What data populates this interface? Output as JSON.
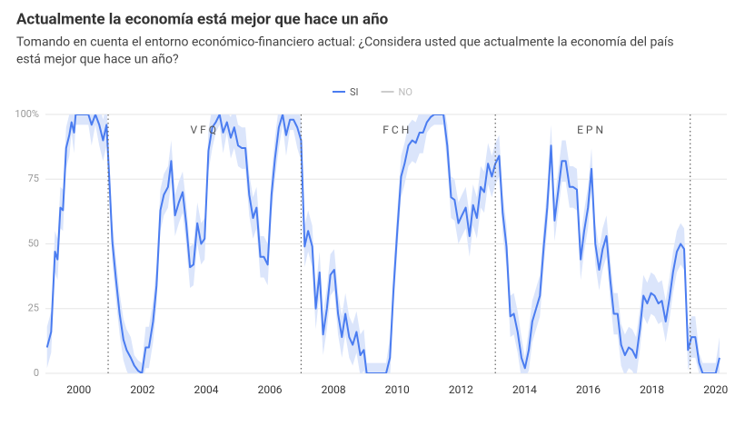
{
  "chart_data": {
    "type": "line",
    "title": "Actualmente la economía está mejor que hace un año",
    "subtitle": [
      "Tomando en cuenta el entorno económico-financiero actual: ¿Considera usted que actualmente la economía del país",
      "está mejor que hace un año?"
    ],
    "xlim": [
      1998.95,
      2020.35
    ],
    "xticks": [
      2000,
      2002,
      2004,
      2006,
      2008,
      2010,
      2012,
      2014,
      2016,
      2018,
      2020
    ],
    "ylim": [
      0,
      100
    ],
    "yticks": [
      0,
      25,
      50,
      {
        "value": 75,
        "label": "75"
      },
      {
        "value": 100,
        "label": "100%"
      }
    ],
    "grid": true,
    "legend": "top",
    "dividers": [
      2000.92,
      2006.98,
      2013.08,
      2019.2
    ],
    "periods": [
      {
        "label": "VFQ",
        "x": 2003.95
      },
      {
        "label": "FCH",
        "x": 2010.0
      },
      {
        "label": "EPN",
        "x": 2016.1
      }
    ],
    "x": [
      1999.0,
      1999.13,
      1999.25,
      1999.33,
      1999.42,
      1999.5,
      1999.6,
      1999.7,
      1999.77,
      1999.85,
      1999.9,
      2000.15,
      2000.3,
      2000.4,
      2000.52,
      2000.64,
      2000.76,
      2000.87,
      2000.96,
      2001.05,
      2001.16,
      2001.28,
      2001.4,
      2001.5,
      2001.63,
      2001.74,
      2001.86,
      2001.98,
      2002.1,
      2002.2,
      2002.33,
      2002.44,
      2002.56,
      2002.67,
      2002.8,
      2002.9,
      2003.02,
      2003.14,
      2003.26,
      2003.37,
      2003.49,
      2003.6,
      2003.72,
      2003.84,
      2003.95,
      2004.07,
      2004.19,
      2004.3,
      2004.42,
      2004.53,
      2004.65,
      2004.77,
      2004.88,
      2005.0,
      2005.12,
      2005.23,
      2005.35,
      2005.47,
      2005.58,
      2005.7,
      2005.81,
      2005.93,
      2006.05,
      2006.16,
      2006.28,
      2006.4,
      2006.51,
      2006.63,
      2006.74,
      2006.86,
      2006.98,
      2007.09,
      2007.2,
      2007.33,
      2007.44,
      2007.56,
      2007.67,
      2007.79,
      2007.9,
      2008.02,
      2008.14,
      2008.26,
      2008.37,
      2008.49,
      2008.6,
      2008.72,
      2008.84,
      2008.95,
      2009.04,
      2009.65,
      2009.77,
      2009.88,
      2010.0,
      2010.12,
      2010.23,
      2010.35,
      2010.47,
      2010.58,
      2010.7,
      2010.81,
      2010.93,
      2011.05,
      2011.16,
      2011.45,
      2011.57,
      2011.69,
      2011.8,
      2011.92,
      2012.03,
      2012.15,
      2012.27,
      2012.38,
      2012.5,
      2012.62,
      2012.73,
      2012.85,
      2012.97,
      2013.08,
      2013.2,
      2013.31,
      2013.43,
      2013.55,
      2013.66,
      2013.78,
      2013.9,
      2014.01,
      2014.13,
      2014.24,
      2014.36,
      2014.48,
      2014.6,
      2014.71,
      2014.83,
      2014.94,
      2015.06,
      2015.17,
      2015.29,
      2015.41,
      2015.52,
      2015.64,
      2015.76,
      2015.87,
      2015.99,
      2016.1,
      2016.22,
      2016.34,
      2016.45,
      2016.57,
      2016.69,
      2016.8,
      2016.92,
      2017.03,
      2017.15,
      2017.27,
      2017.38,
      2017.5,
      2017.62,
      2017.73,
      2017.85,
      2017.97,
      2018.08,
      2018.2,
      2018.31,
      2018.43,
      2018.55,
      2018.66,
      2018.78,
      2018.9,
      2019.01,
      2019.13,
      2019.24,
      2019.36,
      2019.48,
      2019.59,
      2020.0,
      2020.12
    ],
    "series": [
      {
        "name": "SI",
        "color": "#4a7cf0",
        "band_color": "#dbe5fb",
        "values": [
          10,
          16,
          47,
          44,
          64,
          63,
          87,
          92,
          97,
          93,
          100,
          100,
          100,
          96,
          100,
          96,
          90,
          96,
          74,
          51,
          37,
          23,
          13,
          9,
          6,
          3,
          1,
          0,
          10,
          10,
          20,
          34,
          63,
          69,
          72,
          82,
          61,
          66,
          70,
          58,
          41,
          42,
          58,
          50,
          52,
          86,
          95,
          97,
          100,
          93,
          97,
          91,
          95,
          88,
          87,
          87,
          69,
          60,
          64,
          45,
          45,
          42,
          69,
          83,
          95,
          100,
          92,
          98,
          98,
          95,
          90,
          49,
          55,
          49,
          25,
          39,
          15,
          25,
          38,
          40,
          23,
          14,
          23,
          14,
          11,
          16,
          7,
          9,
          0,
          0,
          6,
          32,
          55,
          76,
          81,
          88,
          90,
          89,
          93,
          93,
          97,
          99,
          100,
          100,
          88,
          68,
          67,
          58,
          61,
          64,
          53,
          65,
          60,
          72,
          70,
          81,
          76,
          81,
          84,
          62,
          49,
          22,
          23,
          16,
          6,
          2,
          9,
          20,
          25,
          30,
          49,
          64,
          88,
          59,
          71,
          82,
          82,
          72,
          72,
          71,
          44,
          55,
          64,
          79,
          50,
          40,
          48,
          53,
          36,
          23,
          23,
          11,
          7,
          10,
          9,
          6,
          17,
          30,
          27,
          31,
          30,
          27,
          28,
          20,
          29,
          39,
          47,
          50,
          48,
          9,
          14,
          14,
          4,
          0,
          0,
          6
        ],
        "errors": [
          8,
          8,
          8,
          8,
          8,
          8,
          8,
          8,
          4,
          8,
          4,
          4,
          4,
          8,
          4,
          8,
          8,
          8,
          8,
          8,
          8,
          8,
          8,
          8,
          8,
          4,
          4,
          4,
          8,
          8,
          8,
          8,
          8,
          8,
          8,
          8,
          8,
          8,
          8,
          8,
          8,
          8,
          8,
          8,
          8,
          8,
          8,
          4,
          4,
          8,
          4,
          8,
          8,
          8,
          8,
          8,
          8,
          8,
          8,
          8,
          8,
          8,
          8,
          8,
          8,
          4,
          8,
          4,
          4,
          8,
          8,
          8,
          8,
          8,
          8,
          8,
          8,
          8,
          8,
          8,
          8,
          8,
          8,
          8,
          8,
          8,
          8,
          8,
          4,
          4,
          8,
          8,
          8,
          8,
          8,
          8,
          8,
          8,
          8,
          8,
          4,
          4,
          4,
          4,
          8,
          8,
          8,
          8,
          8,
          8,
          8,
          8,
          8,
          8,
          8,
          8,
          8,
          8,
          8,
          8,
          8,
          8,
          8,
          8,
          8,
          4,
          8,
          8,
          8,
          8,
          8,
          8,
          8,
          8,
          8,
          8,
          8,
          8,
          8,
          8,
          8,
          8,
          8,
          8,
          8,
          8,
          8,
          8,
          8,
          8,
          8,
          8,
          8,
          8,
          8,
          8,
          8,
          8,
          8,
          8,
          8,
          8,
          8,
          8,
          8,
          8,
          8,
          8,
          8,
          8,
          8,
          8,
          4,
          4,
          4,
          8
        ]
      },
      {
        "name": "NO",
        "color": "#cccccc",
        "visible": false
      }
    ]
  }
}
